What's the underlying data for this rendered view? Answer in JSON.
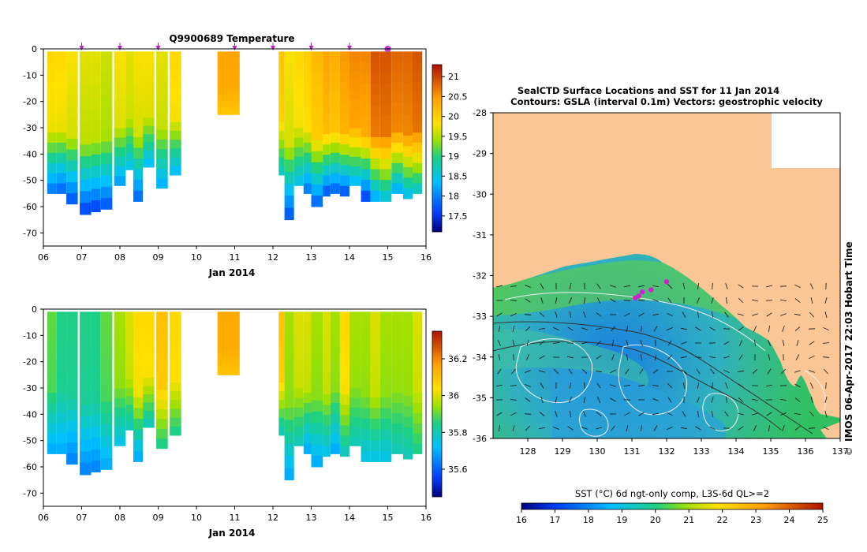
{
  "chart_data": [
    {
      "type": "heatmap",
      "title": "Q9900689  Temperature",
      "xlabel": "Jan 2014",
      "ylabel": "",
      "x_ticks": [
        "06",
        "07",
        "08",
        "09",
        "10",
        "11",
        "12",
        "13",
        "14",
        "15",
        "16"
      ],
      "y_ticks": [
        "0",
        "-10",
        "-20",
        "-30",
        "-40",
        "-50",
        "-60",
        "-70"
      ],
      "xlim": [
        6.0,
        16.0
      ],
      "ylim": [
        -75,
        0
      ],
      "colorbar_ticks": [
        "21",
        "20.5",
        "20",
        "19.5",
        "19",
        "18.5",
        "18",
        "17.5"
      ],
      "colorbar_range": [
        17.1,
        21.3
      ],
      "markers_at": [
        7,
        8,
        9,
        11,
        12,
        13,
        14
      ],
      "highlight_marker_at": 15,
      "profiles": [
        {
          "t": 6.1,
          "depth": -55,
          "surface": 19.9,
          "deep": 18.0
        },
        {
          "t": 6.35,
          "depth": -55,
          "surface": 19.9,
          "deep": 17.9
        },
        {
          "t": 6.6,
          "depth": -59,
          "surface": 19.8,
          "deep": 17.8
        },
        {
          "t": 6.95,
          "depth": -63,
          "surface": 19.7,
          "deep": 17.7
        },
        {
          "t": 7.25,
          "depth": -62,
          "surface": 19.7,
          "deep": 17.7
        },
        {
          "t": 7.5,
          "depth": -61,
          "surface": 19.6,
          "deep": 17.8
        },
        {
          "t": 7.85,
          "depth": -52,
          "surface": 19.8,
          "deep": 18.2
        },
        {
          "t": 8.15,
          "depth": -46,
          "surface": 19.7,
          "deep": 18.5
        },
        {
          "t": 8.35,
          "depth": -58,
          "surface": 19.8,
          "deep": 17.9
        },
        {
          "t": 8.6,
          "depth": -45,
          "surface": 19.8,
          "deep": 18.4
        },
        {
          "t": 8.95,
          "depth": -53,
          "surface": 19.7,
          "deep": 18.3
        },
        {
          "t": 9.3,
          "depth": -48,
          "surface": 19.9,
          "deep": 18.4
        },
        {
          "t": 11.0,
          "depth": -25,
          "surface": 20.4,
          "deep": 20.1
        },
        {
          "t": 12.15,
          "depth": -48,
          "surface": 20.1,
          "deep": 18.7
        },
        {
          "t": 12.3,
          "depth": -65,
          "surface": 19.8,
          "deep": 17.8
        },
        {
          "t": 12.55,
          "depth": -52,
          "surface": 19.9,
          "deep": 18.5
        },
        {
          "t": 12.8,
          "depth": -55,
          "surface": 20.0,
          "deep": 18.0
        },
        {
          "t": 13.0,
          "depth": -60,
          "surface": 20.2,
          "deep": 17.9
        },
        {
          "t": 13.3,
          "depth": -56,
          "surface": 20.4,
          "deep": 17.8
        },
        {
          "t": 13.5,
          "depth": -55,
          "surface": 20.3,
          "deep": 17.9
        },
        {
          "t": 13.75,
          "depth": -56,
          "surface": 20.5,
          "deep": 17.8
        },
        {
          "t": 14.0,
          "depth": -52,
          "surface": 20.6,
          "deep": 18.4
        },
        {
          "t": 14.3,
          "depth": -58,
          "surface": 20.6,
          "deep": 17.7
        },
        {
          "t": 14.55,
          "depth": -58,
          "surface": 20.9,
          "deep": 18.3
        },
        {
          "t": 14.8,
          "depth": -58,
          "surface": 20.9,
          "deep": 18.6
        },
        {
          "t": 15.1,
          "depth": -55,
          "surface": 20.8,
          "deep": 18.3
        },
        {
          "t": 15.4,
          "depth": -57,
          "surface": 20.8,
          "deep": 18.5
        },
        {
          "t": 15.65,
          "depth": -55,
          "surface": 20.9,
          "deep": 18.7
        }
      ]
    },
    {
      "type": "heatmap",
      "title": "",
      "xlabel": "Jan 2014",
      "ylabel": "",
      "x_ticks": [
        "06",
        "07",
        "08",
        "09",
        "10",
        "11",
        "12",
        "13",
        "14",
        "15",
        "16"
      ],
      "y_ticks": [
        "0",
        "-10",
        "-20",
        "-30",
        "-40",
        "-50",
        "-60",
        "-70"
      ],
      "xlim": [
        6.0,
        16.0
      ],
      "ylim": [
        -75,
        0
      ],
      "colorbar_ticks": [
        "36.2",
        "36",
        "35.8",
        "35.6"
      ],
      "colorbar_range": [
        35.45,
        36.35
      ],
      "profiles": [
        {
          "t": 6.1,
          "depth": -55,
          "surface": 35.9,
          "deep": 35.7
        },
        {
          "t": 6.35,
          "depth": -55,
          "surface": 35.85,
          "deep": 35.7
        },
        {
          "t": 6.6,
          "depth": -59,
          "surface": 35.85,
          "deep": 35.65
        },
        {
          "t": 6.95,
          "depth": -63,
          "surface": 35.85,
          "deep": 35.65
        },
        {
          "t": 7.25,
          "depth": -62,
          "surface": 35.85,
          "deep": 35.65
        },
        {
          "t": 7.5,
          "depth": -61,
          "surface": 35.9,
          "deep": 35.7
        },
        {
          "t": 7.85,
          "depth": -52,
          "surface": 35.95,
          "deep": 35.75
        },
        {
          "t": 8.15,
          "depth": -46,
          "surface": 36.0,
          "deep": 35.8
        },
        {
          "t": 8.35,
          "depth": -58,
          "surface": 36.05,
          "deep": 35.7
        },
        {
          "t": 8.6,
          "depth": -45,
          "surface": 36.05,
          "deep": 35.8
        },
        {
          "t": 8.95,
          "depth": -53,
          "surface": 36.1,
          "deep": 35.85
        },
        {
          "t": 9.3,
          "depth": -48,
          "surface": 36.05,
          "deep": 35.85
        },
        {
          "t": 11.0,
          "depth": -25,
          "surface": 36.15,
          "deep": 36.1
        },
        {
          "t": 12.15,
          "depth": -48,
          "surface": 36.1,
          "deep": 35.8
        },
        {
          "t": 12.3,
          "depth": -65,
          "surface": 35.95,
          "deep": 35.7
        },
        {
          "t": 12.55,
          "depth": -52,
          "surface": 36.0,
          "deep": 35.8
        },
        {
          "t": 12.8,
          "depth": -55,
          "surface": 36.0,
          "deep": 35.7
        },
        {
          "t": 13.0,
          "depth": -60,
          "surface": 35.95,
          "deep": 35.7
        },
        {
          "t": 13.3,
          "depth": -56,
          "surface": 36.0,
          "deep": 35.75
        },
        {
          "t": 13.5,
          "depth": -55,
          "surface": 35.95,
          "deep": 35.7
        },
        {
          "t": 13.75,
          "depth": -56,
          "surface": 36.05,
          "deep": 35.8
        },
        {
          "t": 14.0,
          "depth": -52,
          "surface": 35.95,
          "deep": 35.8
        },
        {
          "t": 14.3,
          "depth": -58,
          "surface": 35.95,
          "deep": 35.75
        },
        {
          "t": 14.55,
          "depth": -58,
          "surface": 36.0,
          "deep": 35.75
        },
        {
          "t": 14.8,
          "depth": -58,
          "surface": 35.95,
          "deep": 35.75
        },
        {
          "t": 15.1,
          "depth": -55,
          "surface": 35.95,
          "deep": 35.8
        },
        {
          "t": 15.4,
          "depth": -57,
          "surface": 35.95,
          "deep": 35.8
        },
        {
          "t": 15.65,
          "depth": -55,
          "surface": 36.0,
          "deep": 35.85
        }
      ]
    },
    {
      "type": "map",
      "title_line1": "SealCTD Surface Locations and SST for 11 Jan 2014",
      "title_line2": "Contours: GSLA (interval 0.1m) Vectors: geostrophic velocity",
      "x_ticks": [
        "128",
        "129",
        "130",
        "131",
        "132",
        "133",
        "134",
        "135",
        "136",
        "137"
      ],
      "y_ticks": [
        "-28",
        "-29",
        "-30",
        "-31",
        "-32",
        "-33",
        "-34",
        "-35",
        "-36"
      ],
      "xlim": [
        127.0,
        137.0
      ],
      "ylim": [
        -36.0,
        -28.0
      ],
      "colorbar_label": "SST (°C) 6d ngt-only comp, L3S-6d QL>=2",
      "colorbar_ticks": [
        "16",
        "17",
        "18",
        "19",
        "20",
        "21",
        "22",
        "23",
        "24",
        "25"
      ],
      "colorbar_range": [
        16,
        25
      ],
      "seal_locations": [
        {
          "lon": 131.1,
          "lat": -32.55
        },
        {
          "lon": 131.3,
          "lat": -32.4
        },
        {
          "lon": 131.55,
          "lat": -32.35
        },
        {
          "lon": 132.0,
          "lat": -32.15
        },
        {
          "lon": 131.2,
          "lat": -32.5
        }
      ],
      "side_label": "IMOS 06-Apr-2017 22:03 Hobart Time"
    }
  ]
}
